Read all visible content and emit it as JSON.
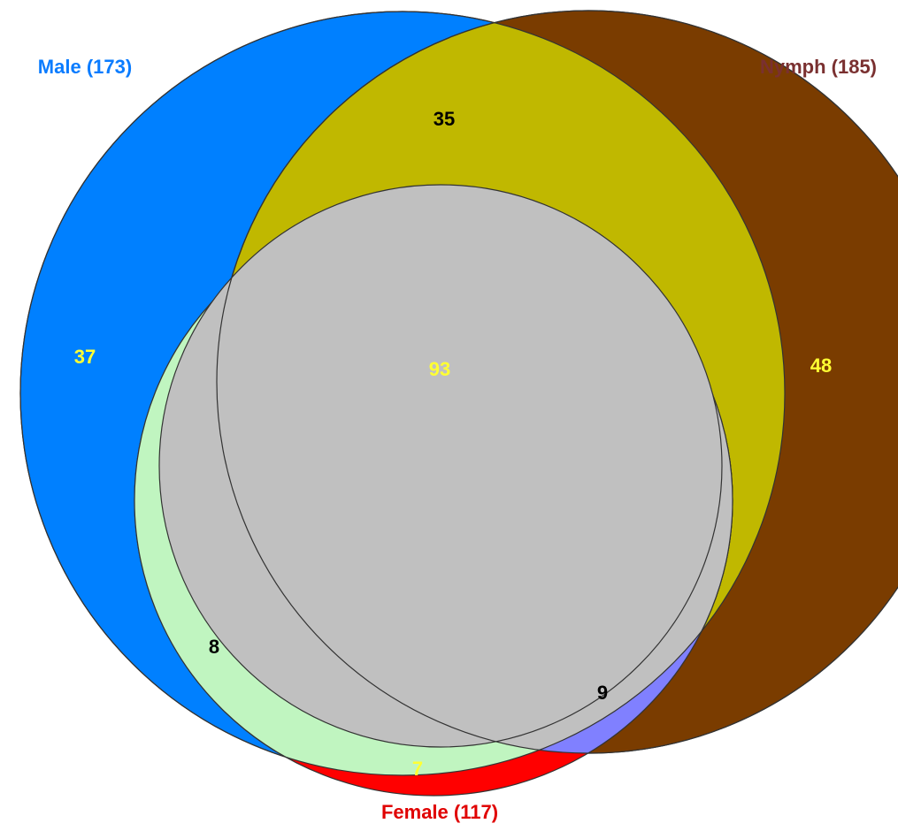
{
  "sets": [
    {
      "key": "male",
      "label": "Male (173)",
      "color": "#0080ff"
    },
    {
      "key": "nymph",
      "label": "Nymph (185)",
      "color": "#7a3c00"
    },
    {
      "key": "female",
      "label": "Female (117)",
      "color": "#ff0000"
    }
  ],
  "regions": {
    "male_only": {
      "count": "37",
      "text_color": "#ffff33"
    },
    "nymph_only": {
      "count": "48",
      "text_color": "#ffff33"
    },
    "female_only": {
      "count": "7",
      "text_color": "#ffff33"
    },
    "male_nymph": {
      "count": "35",
      "text_color": "#000000",
      "color": "#c0b800"
    },
    "male_female": {
      "count": "8",
      "text_color": "#000000",
      "color": "#c0f5c0"
    },
    "nymph_female": {
      "count": "9",
      "text_color": "#000000",
      "color": "#8080ff"
    },
    "all_three": {
      "count": "93",
      "text_color": "#ffff33",
      "color": "#c0c0c0"
    }
  }
}
